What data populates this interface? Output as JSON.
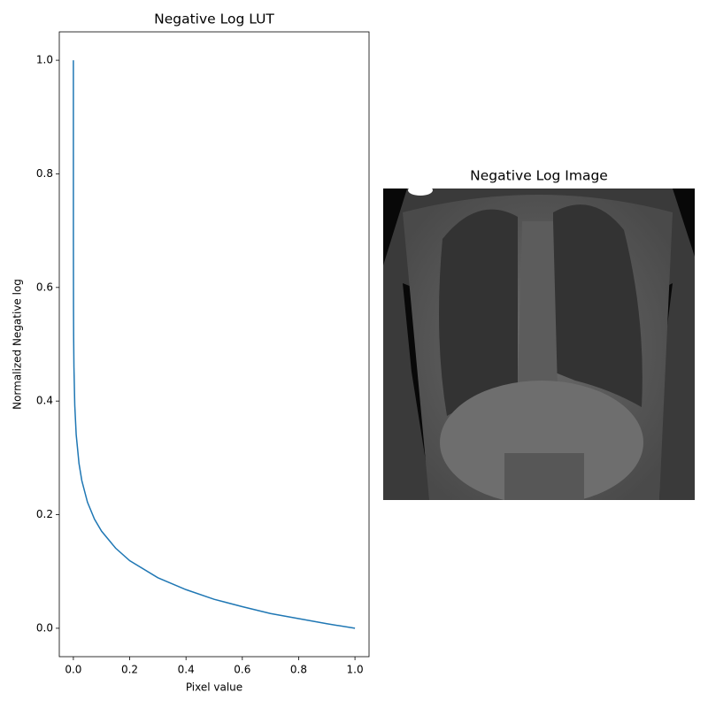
{
  "chart_data": [
    {
      "type": "line",
      "title": "Negative Log LUT",
      "xlabel": "Pixel value",
      "ylabel": "Normalized Negative log",
      "color": "#1f77b4",
      "x": [
        0,
        0.0001,
        0.0005,
        0.001,
        0.002,
        0.005,
        0.01,
        0.02,
        0.03,
        0.05,
        0.075,
        0.1,
        0.15,
        0.2,
        0.3,
        0.4,
        0.5,
        0.6,
        0.7,
        0.8,
        0.9,
        1.0
      ],
      "values": [
        1.0,
        0.682,
        0.563,
        0.512,
        0.46,
        0.392,
        0.341,
        0.29,
        0.26,
        0.222,
        0.192,
        0.171,
        0.141,
        0.119,
        0.089,
        0.068,
        0.051,
        0.038,
        0.026,
        0.017,
        0.008,
        0.0
      ],
      "xlim": [
        -0.05,
        1.05
      ],
      "ylim": [
        -0.05,
        1.05
      ],
      "xticks": [
        {
          "value": 0,
          "label": "0.0"
        },
        {
          "value": 0.2,
          "label": "0.2"
        },
        {
          "value": 0.4,
          "label": "0.4"
        },
        {
          "value": 0.6,
          "label": "0.6"
        },
        {
          "value": 0.8,
          "label": "0.8"
        },
        {
          "value": 1,
          "label": "1.0"
        }
      ],
      "yticks": [
        {
          "value": 0,
          "label": "0.0"
        },
        {
          "value": 0.2,
          "label": "0.2"
        },
        {
          "value": 0.4,
          "label": "0.4"
        },
        {
          "value": 0.6,
          "label": "0.6"
        },
        {
          "value": 0.8,
          "label": "0.8"
        },
        {
          "value": 1,
          "label": "1.0"
        }
      ]
    },
    {
      "type": "image",
      "title": "Negative Log Image"
    }
  ]
}
